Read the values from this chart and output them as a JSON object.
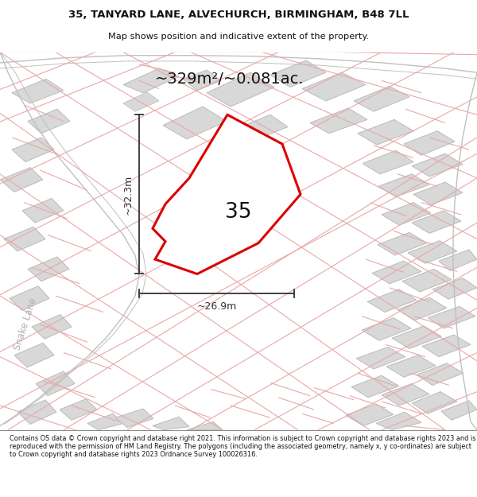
{
  "title_line1": "35, TANYARD LANE, ALVECHURCH, BIRMINGHAM, B48 7LL",
  "title_line2": "Map shows position and indicative extent of the property.",
  "area_label": "~329m²/~0.081ac.",
  "width_label": "~26.9m",
  "height_label": "~32.3m",
  "property_number": "35",
  "street_label": "Snake Lane",
  "footer_text": "Contains OS data © Crown copyright and database right 2021. This information is subject to Crown copyright and database rights 2023 and is reproduced with the permission of HM Land Registry. The polygons (including the associated geometry, namely x, y co-ordinates) are subject to Crown copyright and database rights 2023 Ordnance Survey 100026316.",
  "map_bg": "#f5f4f2",
  "plot_fill": "#ffffff",
  "plot_border": "#dd0000",
  "building_fill": "#d8d8d8",
  "building_edge": "#bbbbbb",
  "parcel_line": "#e8a0a0",
  "road_line": "#c8c8c8",
  "dim_color": "#333333",
  "text_dark": "#111111",
  "text_gray": "#aaaaaa",
  "footer_bg": "#ffffff"
}
